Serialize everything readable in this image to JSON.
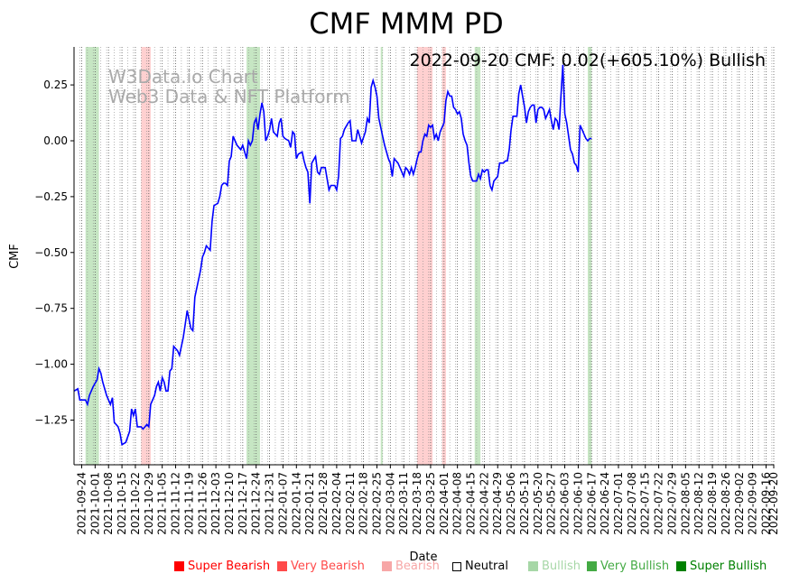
{
  "chart_data": {
    "type": "line",
    "title": "CMF MMM PD",
    "annotation": "2022-09-20 CMF: 0.02(+605.10%) Bullish",
    "watermark": [
      "W3Data.io Chart",
      "Web3 Data & NFT Platform"
    ],
    "xlabel": "Date",
    "ylabel": "CMF",
    "ylim": [
      -1.45,
      0.42
    ],
    "yticks": [
      0.25,
      0.0,
      -0.25,
      -0.5,
      -0.75,
      -1.0,
      -1.25
    ],
    "ytick_labels": [
      "0.25",
      "0.00",
      "−0.25",
      "−0.50",
      "−0.75",
      "−1.00",
      "−1.25"
    ],
    "x_start": "2021-09-20",
    "x_end": "2022-09-20",
    "xtick_labels": [
      "2021-09-24",
      "2021-10-01",
      "2021-10-08",
      "2021-10-15",
      "2021-10-22",
      "2021-10-29",
      "2021-11-05",
      "2021-11-12",
      "2021-11-19",
      "2021-11-26",
      "2021-12-03",
      "2021-12-10",
      "2021-12-17",
      "2021-12-24",
      "2021-12-31",
      "2022-01-07",
      "2022-01-14",
      "2022-01-21",
      "2022-01-28",
      "2022-02-04",
      "2022-02-11",
      "2022-02-18",
      "2022-02-25",
      "2022-03-04",
      "2022-03-11",
      "2022-03-18",
      "2022-03-25",
      "2022-04-01",
      "2022-04-08",
      "2022-04-15",
      "2022-04-22",
      "2022-04-29",
      "2022-05-06",
      "2022-05-13",
      "2022-05-20",
      "2022-05-27",
      "2022-06-03",
      "2022-06-10",
      "2022-06-17",
      "2022-06-24",
      "2022-07-01",
      "2022-07-08",
      "2022-07-15",
      "2022-07-22",
      "2022-07-29",
      "2022-08-05",
      "2022-08-12",
      "2022-08-19",
      "2022-08-26",
      "2022-09-02",
      "2022-09-09",
      "2022-09-16",
      "2022-09-20"
    ],
    "series": [
      {
        "name": "CMF",
        "color": "#0000ff",
        "points": [
          [
            "2021-09-20",
            -1.12
          ],
          [
            "2021-09-22",
            -1.11
          ],
          [
            "2021-09-23",
            -1.16
          ],
          [
            "2021-09-26",
            -1.16
          ],
          [
            "2021-09-27",
            -1.18
          ],
          [
            "2021-09-28",
            -1.14
          ],
          [
            "2021-09-30",
            -1.1
          ],
          [
            "2021-10-02",
            -1.07
          ],
          [
            "2021-10-03",
            -1.02
          ],
          [
            "2021-10-04",
            -1.04
          ],
          [
            "2021-10-05",
            -1.08
          ],
          [
            "2021-10-07",
            -1.14
          ],
          [
            "2021-10-09",
            -1.18
          ],
          [
            "2021-10-10",
            -1.15
          ],
          [
            "2021-10-11",
            -1.26
          ],
          [
            "2021-10-13",
            -1.28
          ],
          [
            "2021-10-14",
            -1.31
          ],
          [
            "2021-10-15",
            -1.36
          ],
          [
            "2021-10-17",
            -1.35
          ],
          [
            "2021-10-19",
            -1.3
          ],
          [
            "2021-10-20",
            -1.2
          ],
          [
            "2021-10-21",
            -1.23
          ],
          [
            "2021-10-22",
            -1.2
          ],
          [
            "2021-10-23",
            -1.28
          ],
          [
            "2021-10-25",
            -1.28
          ],
          [
            "2021-10-26",
            -1.29
          ],
          [
            "2021-10-27",
            -1.28
          ],
          [
            "2021-10-28",
            -1.27
          ],
          [
            "2021-10-29",
            -1.28
          ],
          [
            "2021-10-30",
            -1.18
          ],
          [
            "2021-11-01",
            -1.14
          ],
          [
            "2021-11-02",
            -1.1
          ],
          [
            "2021-11-03",
            -1.08
          ],
          [
            "2021-11-04",
            -1.12
          ],
          [
            "2021-11-05",
            -1.06
          ],
          [
            "2021-11-06",
            -1.08
          ],
          [
            "2021-11-07",
            -1.12
          ],
          [
            "2021-11-08",
            -1.12
          ],
          [
            "2021-11-09",
            -1.03
          ],
          [
            "2021-11-10",
            -1.02
          ],
          [
            "2021-11-11",
            -0.92
          ],
          [
            "2021-11-13",
            -0.94
          ],
          [
            "2021-11-14",
            -0.96
          ],
          [
            "2021-11-16",
            -0.88
          ],
          [
            "2021-11-17",
            -0.82
          ],
          [
            "2021-11-18",
            -0.76
          ],
          [
            "2021-11-19",
            -0.8
          ],
          [
            "2021-11-20",
            -0.84
          ],
          [
            "2021-11-21",
            -0.85
          ],
          [
            "2021-11-22",
            -0.7
          ],
          [
            "2021-11-24",
            -0.62
          ],
          [
            "2021-11-25",
            -0.58
          ],
          [
            "2021-11-26",
            -0.52
          ],
          [
            "2021-11-27",
            -0.5
          ],
          [
            "2021-11-28",
            -0.47
          ],
          [
            "2021-11-30",
            -0.49
          ],
          [
            "2021-12-01",
            -0.36
          ],
          [
            "2021-12-02",
            -0.29
          ],
          [
            "2021-12-04",
            -0.28
          ],
          [
            "2021-12-05",
            -0.25
          ],
          [
            "2021-12-06",
            -0.2
          ],
          [
            "2021-12-07",
            -0.19
          ],
          [
            "2021-12-08",
            -0.19
          ],
          [
            "2021-12-09",
            -0.2
          ],
          [
            "2021-12-10",
            -0.09
          ],
          [
            "2021-12-11",
            -0.07
          ],
          [
            "2021-12-12",
            0.02
          ],
          [
            "2021-12-14",
            -0.02
          ],
          [
            "2021-12-16",
            -0.04
          ],
          [
            "2021-12-17",
            -0.02
          ],
          [
            "2021-12-18",
            -0.05
          ],
          [
            "2021-12-19",
            -0.08
          ],
          [
            "2021-12-20",
            0.0
          ],
          [
            "2021-12-21",
            -0.02
          ],
          [
            "2021-12-22",
            0.0
          ],
          [
            "2021-12-23",
            0.08
          ],
          [
            "2021-12-24",
            0.1
          ],
          [
            "2021-12-25",
            0.05
          ],
          [
            "2021-12-26",
            0.12
          ],
          [
            "2021-12-27",
            0.17
          ],
          [
            "2021-12-28",
            0.13
          ],
          [
            "2021-12-29",
            0.0
          ],
          [
            "2021-12-30",
            0.02
          ],
          [
            "2021-12-31",
            0.05
          ],
          [
            "2022-01-01",
            0.1
          ],
          [
            "2022-01-02",
            0.04
          ],
          [
            "2022-01-04",
            0.02
          ],
          [
            "2022-01-05",
            0.08
          ],
          [
            "2022-01-06",
            0.1
          ],
          [
            "2022-01-07",
            0.02
          ],
          [
            "2022-01-08",
            0.01
          ],
          [
            "2022-01-10",
            0.0
          ],
          [
            "2022-01-11",
            -0.03
          ],
          [
            "2022-01-12",
            0.04
          ],
          [
            "2022-01-13",
            0.03
          ],
          [
            "2022-01-14",
            -0.08
          ],
          [
            "2022-01-15",
            -0.06
          ],
          [
            "2022-01-17",
            -0.05
          ],
          [
            "2022-01-18",
            -0.09
          ],
          [
            "2022-01-19",
            -0.12
          ],
          [
            "2022-01-20",
            -0.14
          ],
          [
            "2022-01-21",
            -0.28
          ],
          [
            "2022-01-22",
            -0.1
          ],
          [
            "2022-01-24",
            -0.07
          ],
          [
            "2022-01-25",
            -0.14
          ],
          [
            "2022-01-26",
            -0.15
          ],
          [
            "2022-01-27",
            -0.12
          ],
          [
            "2022-01-29",
            -0.12
          ],
          [
            "2022-01-30",
            -0.17
          ],
          [
            "2022-01-31",
            -0.22
          ],
          [
            "2022-02-01",
            -0.2
          ],
          [
            "2022-02-02",
            -0.2
          ],
          [
            "2022-02-03",
            -0.2
          ],
          [
            "2022-02-04",
            -0.22
          ],
          [
            "2022-02-05",
            -0.16
          ],
          [
            "2022-02-06",
            0.01
          ],
          [
            "2022-02-07",
            0.02
          ],
          [
            "2022-02-08",
            0.05
          ],
          [
            "2022-02-10",
            0.08
          ],
          [
            "2022-02-11",
            0.09
          ],
          [
            "2022-02-12",
            0.0
          ],
          [
            "2022-02-14",
            0.0
          ],
          [
            "2022-02-15",
            0.05
          ],
          [
            "2022-02-16",
            0.02
          ],
          [
            "2022-02-17",
            -0.01
          ],
          [
            "2022-02-19",
            0.04
          ],
          [
            "2022-02-20",
            0.1
          ],
          [
            "2022-02-21",
            0.08
          ],
          [
            "2022-02-22",
            0.24
          ],
          [
            "2022-02-23",
            0.27
          ],
          [
            "2022-02-24",
            0.24
          ],
          [
            "2022-02-25",
            0.2
          ],
          [
            "2022-02-26",
            0.1
          ],
          [
            "2022-02-28",
            0.02
          ],
          [
            "2022-03-01",
            -0.02
          ],
          [
            "2022-03-02",
            -0.05
          ],
          [
            "2022-03-03",
            -0.08
          ],
          [
            "2022-03-04",
            -0.1
          ],
          [
            "2022-03-05",
            -0.16
          ],
          [
            "2022-03-06",
            -0.08
          ],
          [
            "2022-03-08",
            -0.1
          ],
          [
            "2022-03-09",
            -0.12
          ],
          [
            "2022-03-10",
            -0.14
          ],
          [
            "2022-03-11",
            -0.16
          ],
          [
            "2022-03-12",
            -0.12
          ],
          [
            "2022-03-13",
            -0.13
          ],
          [
            "2022-03-14",
            -0.15
          ],
          [
            "2022-03-15",
            -0.12
          ],
          [
            "2022-03-16",
            -0.15
          ],
          [
            "2022-03-17",
            -0.12
          ],
          [
            "2022-03-18",
            -0.08
          ],
          [
            "2022-03-19",
            -0.05
          ],
          [
            "2022-03-20",
            -0.05
          ],
          [
            "2022-03-21",
            0.0
          ],
          [
            "2022-03-22",
            0.03
          ],
          [
            "2022-03-23",
            0.02
          ],
          [
            "2022-03-24",
            0.07
          ],
          [
            "2022-03-25",
            0.06
          ],
          [
            "2022-03-26",
            0.07
          ],
          [
            "2022-03-27",
            0.01
          ],
          [
            "2022-03-28",
            0.03
          ],
          [
            "2022-03-29",
            0.0
          ],
          [
            "2022-03-30",
            0.04
          ],
          [
            "2022-04-01",
            0.08
          ],
          [
            "2022-04-02",
            0.18
          ],
          [
            "2022-04-03",
            0.22
          ],
          [
            "2022-04-04",
            0.2
          ],
          [
            "2022-04-05",
            0.2
          ],
          [
            "2022-04-06",
            0.15
          ],
          [
            "2022-04-07",
            0.14
          ],
          [
            "2022-04-08",
            0.12
          ],
          [
            "2022-04-09",
            0.13
          ],
          [
            "2022-04-10",
            0.1
          ],
          [
            "2022-04-11",
            0.03
          ],
          [
            "2022-04-12",
            0.0
          ],
          [
            "2022-04-13",
            -0.02
          ],
          [
            "2022-04-14",
            -0.1
          ],
          [
            "2022-04-15",
            -0.16
          ],
          [
            "2022-04-16",
            -0.18
          ],
          [
            "2022-04-17",
            -0.18
          ],
          [
            "2022-04-18",
            -0.18
          ],
          [
            "2022-04-19",
            -0.15
          ],
          [
            "2022-04-20",
            -0.17
          ],
          [
            "2022-04-21",
            -0.13
          ],
          [
            "2022-04-22",
            -0.14
          ],
          [
            "2022-04-23",
            -0.13
          ],
          [
            "2022-04-24",
            -0.13
          ],
          [
            "2022-04-25",
            -0.2
          ],
          [
            "2022-04-26",
            -0.22
          ],
          [
            "2022-04-27",
            -0.18
          ],
          [
            "2022-04-28",
            -0.17
          ],
          [
            "2022-04-29",
            -0.16
          ],
          [
            "2022-04-30",
            -0.1
          ],
          [
            "2022-05-01",
            -0.1
          ],
          [
            "2022-05-02",
            -0.1
          ],
          [
            "2022-05-03",
            -0.09
          ],
          [
            "2022-05-04",
            -0.09
          ],
          [
            "2022-05-05",
            -0.04
          ],
          [
            "2022-05-06",
            0.05
          ],
          [
            "2022-05-07",
            0.11
          ],
          [
            "2022-05-08",
            0.11
          ],
          [
            "2022-05-09",
            0.11
          ],
          [
            "2022-05-10",
            0.21
          ],
          [
            "2022-05-11",
            0.25
          ],
          [
            "2022-05-12",
            0.2
          ],
          [
            "2022-05-13",
            0.15
          ],
          [
            "2022-05-14",
            0.08
          ],
          [
            "2022-05-15",
            0.13
          ],
          [
            "2022-05-16",
            0.15
          ],
          [
            "2022-05-17",
            0.16
          ],
          [
            "2022-05-18",
            0.16
          ],
          [
            "2022-05-19",
            0.08
          ],
          [
            "2022-05-20",
            0.14
          ],
          [
            "2022-05-21",
            0.15
          ],
          [
            "2022-05-22",
            0.15
          ],
          [
            "2022-05-23",
            0.14
          ],
          [
            "2022-05-24",
            0.1
          ],
          [
            "2022-05-25",
            0.12
          ],
          [
            "2022-05-26",
            0.14
          ],
          [
            "2022-05-27",
            0.09
          ],
          [
            "2022-05-28",
            0.05
          ],
          [
            "2022-05-29",
            0.1
          ],
          [
            "2022-05-30",
            0.09
          ],
          [
            "2022-05-31",
            0.05
          ],
          [
            "2022-06-01",
            0.2
          ],
          [
            "2022-06-02",
            0.34
          ],
          [
            "2022-06-03",
            0.12
          ],
          [
            "2022-06-04",
            0.08
          ],
          [
            "2022-06-05",
            0.02
          ],
          [
            "2022-06-06",
            -0.04
          ],
          [
            "2022-06-07",
            -0.06
          ],
          [
            "2022-06-08",
            -0.1
          ],
          [
            "2022-06-09",
            -0.11
          ],
          [
            "2022-06-10",
            -0.14
          ],
          [
            "2022-06-11",
            0.07
          ],
          [
            "2022-06-12",
            0.05
          ],
          [
            "2022-06-13",
            0.03
          ],
          [
            "2022-06-14",
            0.01
          ],
          [
            "2022-06-15",
            0.0
          ],
          [
            "2022-06-16",
            0.01
          ],
          [
            "2022-06-17",
            0.01
          ]
        ]
      }
    ],
    "bands": [
      {
        "start": "2021-09-26",
        "end": "2021-10-03",
        "kind": "bullish"
      },
      {
        "start": "2021-10-25",
        "end": "2021-10-30",
        "kind": "bearish"
      },
      {
        "start": "2021-12-19",
        "end": "2021-12-26",
        "kind": "bullish"
      },
      {
        "start": "2022-02-27",
        "end": "2022-02-28",
        "kind": "bullish"
      },
      {
        "start": "2022-03-18",
        "end": "2022-03-26",
        "kind": "bearish"
      },
      {
        "start": "2022-03-31",
        "end": "2022-04-02",
        "kind": "bearish"
      },
      {
        "start": "2022-04-17",
        "end": "2022-04-20",
        "kind": "bullish"
      },
      {
        "start": "2022-06-15",
        "end": "2022-06-17",
        "kind": "bullish"
      }
    ],
    "band_colors": {
      "bullish": "#c6e6c3",
      "bearish": "#ffd0d0"
    },
    "legend": [
      {
        "label": "Super Bearish",
        "color": "#ff0000"
      },
      {
        "label": "Very Bearish",
        "color": "#ff4a4a"
      },
      {
        "label": "Bearish",
        "color": "#f7a7a7"
      },
      {
        "label": "Neutral",
        "color": "#000000",
        "hollow": true
      },
      {
        "label": "Bullish",
        "color": "#a7d7a7"
      },
      {
        "label": "Very Bullish",
        "color": "#44aa44"
      },
      {
        "label": "Super Bullish",
        "color": "#008000"
      }
    ]
  }
}
